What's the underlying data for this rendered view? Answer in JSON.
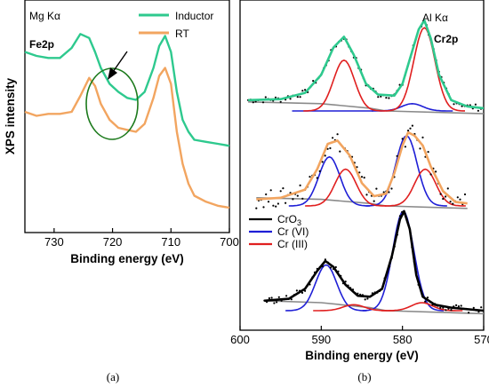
{
  "captions": {
    "a": "(a)",
    "b": "(b)"
  },
  "chart_data": [
    {
      "id": "a",
      "type": "line",
      "source_label": "Mg Kα",
      "region_label": "Fe2p",
      "xlabel": "Binding energy (eV)",
      "ylabel": "XPS intensity",
      "xlim": [
        735,
        700
      ],
      "xticks": [
        730,
        720,
        710,
        700
      ],
      "legend_position": "top-right",
      "annotations": [
        "green-ellipse-around-720eV",
        "arrow-pointing-to-satellite"
      ],
      "series": [
        {
          "name": "Inductor",
          "color": "#2ec98e",
          "points": [
            [
              735,
              0.86
            ],
            [
              733,
              0.84
            ],
            [
              731,
              0.83
            ],
            [
              729,
              0.83
            ],
            [
              727,
              0.88
            ],
            [
              725.5,
              0.95
            ],
            [
              724,
              0.93
            ],
            [
              723,
              0.86
            ],
            [
              722,
              0.78
            ],
            [
              720.5,
              0.7
            ],
            [
              719,
              0.66
            ],
            [
              717.5,
              0.63
            ],
            [
              716,
              0.62
            ],
            [
              714.5,
              0.66
            ],
            [
              713,
              0.78
            ],
            [
              712,
              0.89
            ],
            [
              711,
              0.94
            ],
            [
              710,
              0.86
            ],
            [
              709,
              0.66
            ],
            [
              708,
              0.52
            ],
            [
              707,
              0.46
            ],
            [
              706,
              0.42
            ],
            [
              704,
              0.41
            ],
            [
              702,
              0.4
            ],
            [
              700,
              0.39
            ]
          ]
        },
        {
          "name": "RT",
          "color": "#f2a560",
          "points": [
            [
              735,
              0.56
            ],
            [
              733,
              0.54
            ],
            [
              731,
              0.55
            ],
            [
              729,
              0.55
            ],
            [
              727,
              0.56
            ],
            [
              725.5,
              0.64
            ],
            [
              724,
              0.73
            ],
            [
              723,
              0.69
            ],
            [
              722,
              0.6
            ],
            [
              720.5,
              0.52
            ],
            [
              719,
              0.48
            ],
            [
              717.5,
              0.47
            ],
            [
              716,
              0.46
            ],
            [
              714.5,
              0.5
            ],
            [
              713,
              0.63
            ],
            [
              712,
              0.74
            ],
            [
              711,
              0.78
            ],
            [
              710,
              0.7
            ],
            [
              709,
              0.46
            ],
            [
              708,
              0.3
            ],
            [
              707,
              0.2
            ],
            [
              706,
              0.14
            ],
            [
              704,
              0.11
            ],
            [
              702,
              0.09
            ],
            [
              700,
              0.08
            ]
          ]
        }
      ]
    },
    {
      "id": "b",
      "type": "line",
      "source_label": "Al Kα",
      "region_label": "Cr2p",
      "xlabel": "Binding energy (eV)",
      "xlim": [
        600,
        570
      ],
      "xticks": [
        600,
        590,
        580,
        570
      ],
      "legend_position": "middle-left",
      "legend": [
        {
          "name": "CrO3",
          "color": "#000000"
        },
        {
          "name": "Cr (VI)",
          "color": "#1f1fd6"
        },
        {
          "name": "Cr (III)",
          "color": "#e01f1f"
        }
      ],
      "spectra": [
        {
          "label": "top",
          "envelope_color": "#2ec98e",
          "peaks_crVI": [
            [
              588.6,
              0.0
            ],
            [
              578.8,
              0.08
            ]
          ],
          "peaks_crIII": [
            [
              587.2,
              0.56
            ],
            [
              577.3,
              0.92
            ]
          ],
          "envelope": [
            [
              599,
              0.12
            ],
            [
              595,
              0.13
            ],
            [
              592,
              0.2
            ],
            [
              590,
              0.4
            ],
            [
              588.5,
              0.7
            ],
            [
              587.2,
              0.82
            ],
            [
              586,
              0.62
            ],
            [
              584.5,
              0.3
            ],
            [
              583,
              0.18
            ],
            [
              581,
              0.17
            ],
            [
              580,
              0.3
            ],
            [
              579,
              0.6
            ],
            [
              578,
              0.9
            ],
            [
              577.3,
              1.0
            ],
            [
              576.5,
              0.8
            ],
            [
              575.5,
              0.4
            ],
            [
              574,
              0.12
            ],
            [
              572,
              0.05
            ],
            [
              570,
              0.03
            ]
          ]
        },
        {
          "label": "middle",
          "envelope_color": "#f2a560",
          "peaks_crVI": [
            [
              589.0,
              0.6
            ],
            [
              579.5,
              0.86
            ]
          ],
          "peaks_crIII": [
            [
              587.0,
              0.45
            ],
            [
              577.2,
              0.45
            ]
          ],
          "envelope": [
            [
              598,
              0.08
            ],
            [
              595,
              0.1
            ],
            [
              592,
              0.2
            ],
            [
              590.5,
              0.45
            ],
            [
              589.2,
              0.76
            ],
            [
              588,
              0.8
            ],
            [
              586.5,
              0.62
            ],
            [
              585,
              0.28
            ],
            [
              583.5,
              0.12
            ],
            [
              582,
              0.15
            ],
            [
              581,
              0.4
            ],
            [
              580,
              0.74
            ],
            [
              579.3,
              0.9
            ],
            [
              578.5,
              0.86
            ],
            [
              577.5,
              0.74
            ],
            [
              576.5,
              0.48
            ],
            [
              575,
              0.18
            ],
            [
              573.5,
              0.05
            ],
            [
              572,
              0.03
            ]
          ]
        },
        {
          "label": "bottom",
          "envelope_color": "#000000",
          "peaks_crVI": [
            [
              589.4,
              0.46
            ],
            [
              579.9,
              1.0
            ]
          ],
          "peaks_crIII": [
            [
              586.0,
              0.06
            ],
            [
              577.6,
              0.08
            ]
          ],
          "envelope": [
            [
              597,
              0.1
            ],
            [
              594,
              0.12
            ],
            [
              592,
              0.22
            ],
            [
              590.5,
              0.4
            ],
            [
              589.5,
              0.5
            ],
            [
              588.5,
              0.44
            ],
            [
              587,
              0.26
            ],
            [
              585.5,
              0.15
            ],
            [
              584,
              0.14
            ],
            [
              582.5,
              0.22
            ],
            [
              581.3,
              0.55
            ],
            [
              580.3,
              0.92
            ],
            [
              579.8,
              1.0
            ],
            [
              579.1,
              0.82
            ],
            [
              578.3,
              0.36
            ],
            [
              577.5,
              0.14
            ],
            [
              576,
              0.06
            ],
            [
              574,
              0.03
            ],
            [
              570,
              0.0
            ]
          ]
        }
      ]
    }
  ]
}
